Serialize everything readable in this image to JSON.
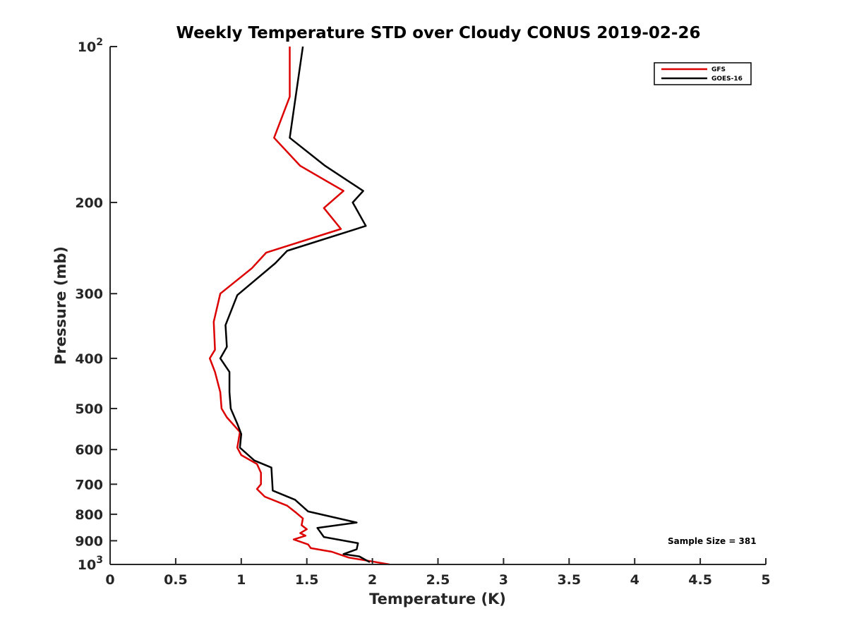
{
  "chart_data": {
    "type": "line",
    "title": "Weekly Temperature STD over Cloudy CONUS 2019-02-26",
    "xlabel": "Temperature (K)",
    "ylabel": "Pressure (mb)",
    "xlim": [
      0,
      5
    ],
    "ylim": [
      100,
      1000
    ],
    "yscale": "log",
    "y_reversed": true,
    "x_ticks": [
      0,
      0.5,
      1,
      1.5,
      2,
      2.5,
      3,
      3.5,
      4,
      4.5,
      5
    ],
    "x_tick_labels": [
      "0",
      "0.5",
      "1",
      "1.5",
      "2",
      "2.5",
      "3",
      "3.5",
      "4",
      "4.5",
      "5"
    ],
    "y_ticks": [
      100,
      200,
      300,
      400,
      500,
      600,
      700,
      800,
      900,
      1000
    ],
    "y_tick_labels": [
      {
        "base": "10",
        "exp": "2"
      },
      {
        "base": "200",
        "exp": ""
      },
      {
        "base": "300",
        "exp": ""
      },
      {
        "base": "400",
        "exp": ""
      },
      {
        "base": "500",
        "exp": ""
      },
      {
        "base": "600",
        "exp": ""
      },
      {
        "base": "700",
        "exp": ""
      },
      {
        "base": "800",
        "exp": ""
      },
      {
        "base": "900",
        "exp": ""
      },
      {
        "base": "10",
        "exp": "3"
      }
    ],
    "legend": {
      "position": "top-right",
      "entries": [
        "GFS",
        "GOES-16"
      ]
    },
    "annotation": "Sample Size = 381",
    "series": [
      {
        "name": "GFS",
        "color": "#dd0000",
        "points": [
          [
            1.37,
            100
          ],
          [
            1.37,
            125
          ],
          [
            1.25,
            150
          ],
          [
            1.45,
            170
          ],
          [
            1.78,
            190
          ],
          [
            1.63,
            205
          ],
          [
            1.76,
            225
          ],
          [
            1.19,
            250
          ],
          [
            1.08,
            268
          ],
          [
            0.84,
            300
          ],
          [
            0.79,
            340
          ],
          [
            0.8,
            385
          ],
          [
            0.76,
            400
          ],
          [
            0.8,
            425
          ],
          [
            0.84,
            465
          ],
          [
            0.85,
            500
          ],
          [
            0.89,
            520
          ],
          [
            0.99,
            555
          ],
          [
            0.97,
            595
          ],
          [
            1.0,
            615
          ],
          [
            1.12,
            640
          ],
          [
            1.15,
            665
          ],
          [
            1.15,
            700
          ],
          [
            1.12,
            715
          ],
          [
            1.18,
            740
          ],
          [
            1.35,
            770
          ],
          [
            1.42,
            795
          ],
          [
            1.47,
            815
          ],
          [
            1.46,
            840
          ],
          [
            1.5,
            855
          ],
          [
            1.45,
            870
          ],
          [
            1.49,
            880
          ],
          [
            1.4,
            895
          ],
          [
            1.51,
            915
          ],
          [
            1.53,
            930
          ],
          [
            1.69,
            945
          ],
          [
            1.82,
            970
          ],
          [
            1.98,
            985
          ],
          [
            2.13,
            1000
          ]
        ]
      },
      {
        "name": "GOES-16",
        "color": "#000000",
        "points": [
          [
            1.47,
            100
          ],
          [
            1.37,
            150
          ],
          [
            1.64,
            170
          ],
          [
            1.93,
            190
          ],
          [
            1.85,
            200
          ],
          [
            1.95,
            222
          ],
          [
            1.35,
            248
          ],
          [
            1.26,
            262
          ],
          [
            0.97,
            302
          ],
          [
            0.88,
            345
          ],
          [
            0.89,
            380
          ],
          [
            0.84,
            400
          ],
          [
            0.91,
            425
          ],
          [
            0.91,
            465
          ],
          [
            0.92,
            500
          ],
          [
            0.97,
            535
          ],
          [
            1.0,
            560
          ],
          [
            0.99,
            595
          ],
          [
            1.1,
            630
          ],
          [
            1.23,
            650
          ],
          [
            1.24,
            720
          ],
          [
            1.41,
            750
          ],
          [
            1.51,
            790
          ],
          [
            1.88,
            830
          ],
          [
            1.58,
            850
          ],
          [
            1.63,
            885
          ],
          [
            1.89,
            910
          ],
          [
            1.88,
            935
          ],
          [
            1.78,
            955
          ],
          [
            1.9,
            965
          ],
          [
            1.98,
            990
          ]
        ]
      }
    ]
  }
}
